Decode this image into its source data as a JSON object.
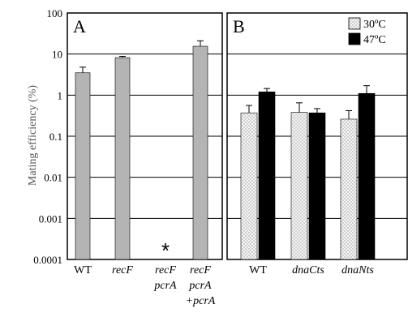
{
  "chart_data": {
    "type": "bar",
    "ylabel": "Mating efficiency (%)",
    "yscale": "log",
    "ylim": [
      0.0001,
      100
    ],
    "yticks": [
      "100",
      "10",
      "1",
      "0.1",
      "0.01",
      "0.001",
      "0.0001"
    ],
    "grid": true,
    "panels": [
      {
        "label": "A",
        "categories": [
          {
            "lines": [
              "WT"
            ],
            "italic": false
          },
          {
            "lines": [
              "recF"
            ],
            "italic": true
          },
          {
            "lines": [
              "recF",
              "pcrA"
            ],
            "italic": true
          },
          {
            "lines": [
              "recF",
              "pcrA",
              "+pcrA"
            ],
            "italic": true
          }
        ],
        "series": [
          {
            "color": "#b4b4b4",
            "values": [
              3.5,
              8.2,
              null,
              15.5
            ],
            "err": [
              4.8,
              8.8,
              null,
              21
            ]
          }
        ],
        "annotations": [
          {
            "category_index": 2,
            "text": "*"
          }
        ]
      },
      {
        "label": "B",
        "categories": [
          {
            "lines": [
              "WT"
            ],
            "italic": false
          },
          {
            "lines": [
              "dnaCts"
            ],
            "italic": true
          },
          {
            "lines": [
              "dnaNts"
            ],
            "italic": true
          }
        ],
        "series": [
          {
            "name": "30ºC",
            "color": "#ececec",
            "pattern": "dots",
            "values": [
              0.37,
              0.38,
              0.26
            ],
            "err": [
              0.56,
              0.65,
              0.42
            ]
          },
          {
            "name": "47ºC",
            "color": "#000000",
            "values": [
              1.2,
              0.37,
              1.1
            ],
            "err": [
              1.45,
              0.47,
              1.7
            ]
          }
        ],
        "legend": "top-right"
      }
    ]
  }
}
